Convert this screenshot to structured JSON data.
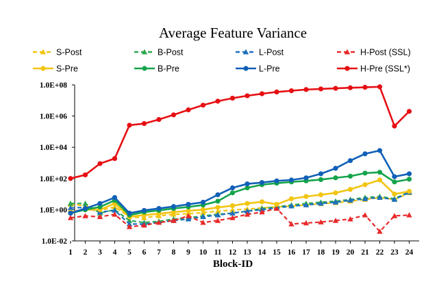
{
  "chart_data": {
    "type": "line",
    "title": "Average Feature Variance",
    "xlabel": "Block-ID",
    "ylabel": "",
    "yscale": "log",
    "ylim": [
      0.01,
      100000000
    ],
    "x": [
      1,
      2,
      3,
      4,
      5,
      6,
      7,
      8,
      9,
      10,
      11,
      12,
      13,
      14,
      15,
      16,
      17,
      18,
      19,
      20,
      21,
      22,
      23,
      24
    ],
    "x_tick_labels": [
      "1",
      "2",
      "3",
      "4",
      "5",
      "6",
      "7",
      "8",
      "9",
      "10",
      "11",
      "12",
      "13",
      "14",
      "15",
      "16",
      "17",
      "18",
      "19",
      "20",
      "21",
      "22",
      "23",
      "24"
    ],
    "y_ticks": [
      0.01,
      1,
      100,
      10000,
      1000000,
      100000000
    ],
    "y_tick_labels": [
      "1.0E-02",
      "1.0E+00",
      "1.0E+02",
      "1.0E+04",
      "1.0E+06",
      "1.0E+08"
    ],
    "grid": false,
    "legend_position": "top",
    "series": [
      {
        "name": "S-Post",
        "color": "#f2c511",
        "marker": "triangle",
        "dashed": true,
        "values": [
          2.2,
          1.8,
          0.9,
          1.5,
          0.35,
          0.3,
          0.4,
          0.5,
          0.55,
          0.65,
          0.8,
          0.95,
          1.1,
          1.3,
          1.5,
          1.7,
          2.0,
          2.4,
          2.8,
          3.5,
          4.5,
          6.0,
          4.5,
          12
        ]
      },
      {
        "name": "B-Post",
        "color": "#2ea84f",
        "marker": "triangle",
        "dashed": true,
        "values": [
          2.5,
          2.5,
          0.6,
          1.0,
          0.2,
          0.15,
          0.18,
          0.25,
          0.3,
          0.4,
          0.5,
          0.6,
          0.8,
          1.2,
          1.5,
          2.0,
          2.5,
          3.0,
          3.5,
          4.5,
          6.0,
          7.0,
          5.0,
          14
        ]
      },
      {
        "name": "L-Post",
        "color": "#1f6fbf",
        "marker": "triangle",
        "dashed": true,
        "values": [
          1.3,
          1.4,
          0.7,
          0.9,
          0.12,
          0.12,
          0.15,
          0.2,
          0.25,
          0.35,
          0.45,
          0.6,
          0.8,
          1.0,
          1.3,
          1.7,
          2.0,
          2.5,
          3.0,
          4.0,
          5.0,
          6.0,
          4.5,
          13
        ]
      },
      {
        "name": "H-Post (SSL)",
        "color": "#e8292a",
        "marker": "triangle",
        "dashed": true,
        "values": [
          0.3,
          0.4,
          0.35,
          0.5,
          0.08,
          0.1,
          0.15,
          0.2,
          0.4,
          0.15,
          0.2,
          0.3,
          0.5,
          0.7,
          1.2,
          0.12,
          0.14,
          0.16,
          0.2,
          0.25,
          0.45,
          0.04,
          0.4,
          0.45
        ]
      },
      {
        "name": "S-Pre",
        "color": "#f2c511",
        "marker": "circle",
        "dashed": false,
        "values": [
          0.7,
          1.0,
          1.0,
          2.5,
          0.35,
          0.45,
          0.55,
          0.7,
          0.85,
          1.0,
          1.4,
          1.8,
          2.5,
          3.2,
          2.2,
          5.0,
          7.0,
          9.0,
          12,
          20,
          40,
          80,
          10,
          15
        ]
      },
      {
        "name": "B-Pre",
        "color": "#13a34a",
        "marker": "circle",
        "dashed": false,
        "values": [
          0.6,
          1.0,
          1.5,
          4.0,
          0.45,
          0.7,
          0.9,
          1.2,
          1.5,
          2.0,
          3.5,
          12,
          25,
          40,
          50,
          60,
          70,
          85,
          110,
          140,
          220,
          250,
          60,
          90
        ]
      },
      {
        "name": "L-Pre",
        "color": "#1060b8",
        "marker": "circle",
        "dashed": false,
        "values": [
          0.6,
          1.2,
          2.5,
          6.0,
          0.6,
          0.9,
          1.2,
          1.6,
          2.2,
          3.0,
          9.0,
          25,
          45,
          55,
          70,
          80,
          110,
          200,
          450,
          1400,
          3800,
          6200,
          130,
          200
        ]
      },
      {
        "name": "H-Pre (SSL*)",
        "color": "#e60f13",
        "marker": "circle",
        "dashed": false,
        "values": [
          100,
          170,
          900,
          1900,
          260000,
          330000,
          600000,
          1200000,
          2500000,
          5000000,
          9000000,
          14000000,
          20000000,
          27000000,
          35000000,
          42000000,
          50000000,
          55000000,
          60000000,
          65000000,
          70000000,
          75000000,
          230000,
          2000000
        ]
      }
    ]
  }
}
